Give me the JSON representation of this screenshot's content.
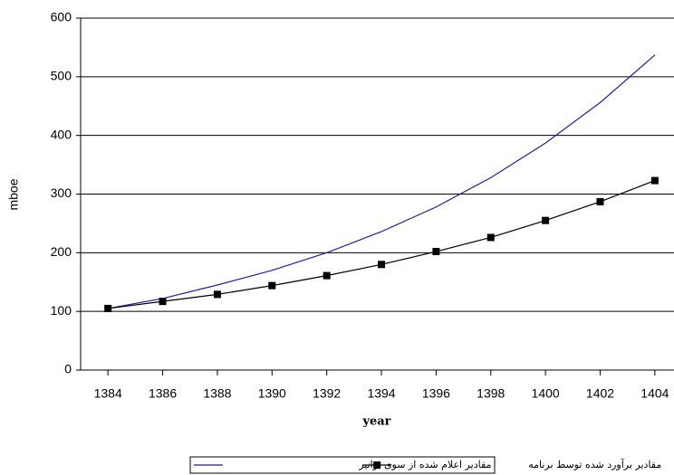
{
  "chart_data": {
    "type": "line",
    "x_label": "year",
    "y_label": "mboe",
    "x": [
      1384,
      1386,
      1388,
      1390,
      1392,
      1394,
      1396,
      1398,
      1400,
      1402,
      1404
    ],
    "series": [
      {
        "name": "مقادیر اعلام شده از سوی توانیر",
        "color": "#1f1fa0",
        "marker": "none",
        "values": [
          105,
          122,
          145,
          170,
          200,
          236,
          278,
          328,
          387,
          456,
          537
        ]
      },
      {
        "name": "مقادیر برآورد شده توسط برنامه",
        "color": "#000000",
        "marker": "square",
        "values": [
          105,
          117,
          129,
          144,
          161,
          180,
          202,
          226,
          255,
          287,
          323
        ]
      }
    ],
    "xlim": [
      1383,
      1404.7
    ],
    "xticks": [
      1384,
      1386,
      1388,
      1390,
      1392,
      1394,
      1396,
      1398,
      1400,
      1402,
      1404
    ],
    "ylim": [
      0,
      600
    ],
    "yticks": [
      0,
      100,
      200,
      300,
      400,
      500,
      600
    ],
    "grid": true,
    "legend": "bottom"
  }
}
